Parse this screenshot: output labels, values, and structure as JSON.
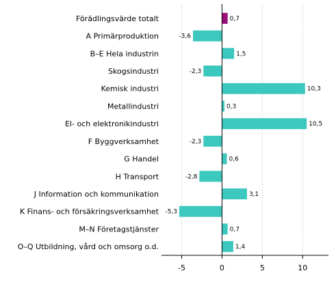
{
  "chart_data": {
    "type": "bar",
    "orientation": "horizontal",
    "categories": [
      "Förädlingsvärde totalt",
      "A Primärproduktion",
      "B–E Hela industrin",
      "Skogsindustri",
      "Kemisk industri",
      "Metallindustri",
      "El- och elektronikindustri",
      "F Byggverksamhet",
      "G Handel",
      "H Transport",
      "J Information och kommunikation",
      "K Finans- och försäkringsverksamhet",
      "M–N Företagstjänster",
      "O–Q Utbildning, vård och omsorg o.d."
    ],
    "values": [
      0.7,
      -3.6,
      1.5,
      -2.3,
      10.3,
      0.3,
      10.5,
      -2.3,
      0.6,
      -2.8,
      3.1,
      -5.3,
      0.7,
      1.4
    ],
    "value_labels": [
      "0,7",
      "-3,6",
      "1,5",
      "-2,3",
      "10,3",
      "0,3",
      "10,5",
      "-2,3",
      "0,6",
      "-2,8",
      "3,1",
      "-5,3",
      "0,7",
      "1,4"
    ],
    "x_ticks": [
      -5,
      0,
      5,
      10
    ],
    "x_tick_labels": [
      "-5",
      "0",
      "5",
      "10"
    ],
    "xlim": [
      -7.5,
      13.2
    ],
    "grid": "vertical",
    "colors": {
      "highlight": "#990f77",
      "bar": "#3cc8be",
      "grid": "#d0d0d0",
      "axis": "#000000"
    },
    "highlight_index": 0
  }
}
